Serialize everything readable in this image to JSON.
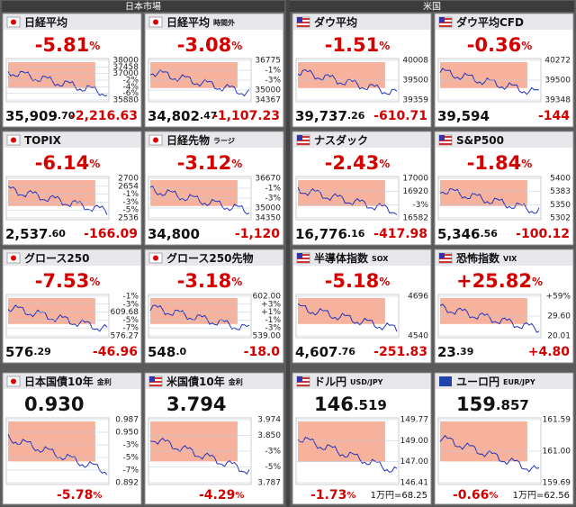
{
  "pct_unit": "%",
  "sections": [
    {
      "title": "日本市場"
    },
    {
      "title": "米国"
    }
  ],
  "tiles": [
    {
      "name": "日経平均",
      "change_pct": "-5.81",
      "axis": [
        "38000",
        "37458",
        "37000",
        "-2%",
        "-4%",
        "-6%",
        "35880"
      ],
      "price": "35,909",
      "price_dec": ".70",
      "change": "-2,216.63"
    },
    {
      "name": "日経平均",
      "sub": "時間外",
      "change_pct": "-3.08",
      "axis": [
        "36775",
        "-1%",
        "-3%",
        "35000",
        "34367"
      ],
      "price": "34,802",
      "price_dec": ".47",
      "change": "-1,107.23"
    },
    {
      "name": "ダウ平均",
      "change_pct": "-1.51",
      "axis": [
        "40008",
        "39500",
        "39359"
      ],
      "price": "39,737",
      "price_dec": ".26",
      "change": "-610.71"
    },
    {
      "name": "ダウ平均CFD",
      "change_pct": "-0.36",
      "axis": [
        "40272",
        "39500",
        "39348"
      ],
      "price": "39,594",
      "change": "-144"
    },
    {
      "name": "TOPIX",
      "change_pct": "-6.14",
      "axis": [
        "2700",
        "2654",
        "-1%",
        "-3%",
        "-5%",
        "2536"
      ],
      "price": "2,537",
      "price_dec": ".60",
      "change": "-166.09"
    },
    {
      "name": "日経先物",
      "sub": "ラージ",
      "change_pct": "-3.12",
      "axis": [
        "36670",
        "-1%",
        "-3%",
        "35000",
        "34350"
      ],
      "price": "34,800",
      "change": "-1,120"
    },
    {
      "name": "ナスダック",
      "change_pct": "-2.43",
      "axis": [
        "17000",
        "16920",
        "-3%",
        "16582"
      ],
      "price": "16,776",
      "price_dec": ".16",
      "change": "-417.98"
    },
    {
      "name": "S&P500",
      "change_pct": "-1.84",
      "axis": [
        "5400",
        "5383",
        "5350",
        "5302"
      ],
      "price": "5,346",
      "price_dec": ".56",
      "change": "-100.12"
    },
    {
      "name": "グロース250",
      "change_pct": "-7.53",
      "axis": [
        "-1%",
        "-3%",
        "609.68",
        "-5%",
        "-7%",
        "576.27"
      ],
      "price": "576",
      "price_dec": ".29",
      "change": "-46.96"
    },
    {
      "name": "グロース250先物",
      "change_pct": "-3.18",
      "axis": [
        "602.00",
        "+3%",
        "+1%",
        "-1%",
        "-3%",
        "539.00"
      ],
      "price": "548",
      "price_dec": ".0",
      "change": "-18.0"
    },
    {
      "name": "半導体指数",
      "sub": "SOX",
      "change_pct": "-5.18",
      "axis": [
        "4696",
        "4540"
      ],
      "price": "4,607",
      "price_dec": ".76",
      "change": "-251.83"
    },
    {
      "name": "恐怖指数",
      "sub": "VIX",
      "change_pct": "+25.82",
      "axis": [
        "+59%",
        "29.60",
        "20.01"
      ],
      "price": "23",
      "price_dec": ".39",
      "change": "+4.80"
    },
    {
      "name": "日本国債10年",
      "sub": "金利",
      "price": "0.930",
      "axis": [
        "0.987",
        "0.950",
        "-3%",
        "-5%",
        "-7%",
        "0.892"
      ],
      "change_pct": "-5.78"
    },
    {
      "name": "米国債10年",
      "sub": "金利",
      "price": "3.794",
      "axis": [
        "3.974",
        "3.850",
        "-3%",
        "-5%",
        "3.787"
      ],
      "change_pct": "-4.29"
    },
    {
      "name": "ドル円",
      "sub": "USD/JPY",
      "price": "146",
      "price_dec": ".519",
      "axis": [
        "149.77",
        "149.00",
        "147.00",
        "146.41"
      ],
      "change_pct": "-1.73",
      "note": "1万円=68.25"
    },
    {
      "name": "ユーロ円",
      "sub": "EUR/JPY",
      "price": "159",
      "price_dec": ".857",
      "axis": [
        "161.59",
        "161.00",
        "159.69"
      ],
      "change_pct": "-0.66",
      "note": "1万円=62.56"
    }
  ]
}
